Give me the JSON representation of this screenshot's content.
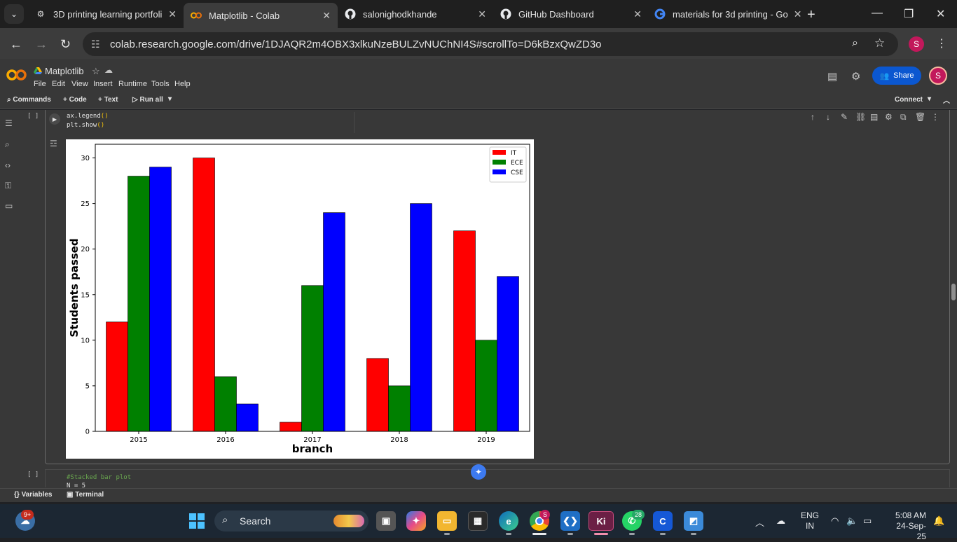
{
  "browser": {
    "tabs": [
      {
        "title": "3D printing learning portfoli",
        "icon": "settings-icon"
      },
      {
        "title": "Matplotlib - Colab",
        "icon": "colab-icon",
        "active": true
      },
      {
        "title": "salonighodkhande",
        "icon": "github-icon"
      },
      {
        "title": "GitHub Dashboard",
        "icon": "github-icon"
      },
      {
        "title": "materials for 3d printing - Go",
        "icon": "google-icon"
      }
    ],
    "url": "colab.research.google.com/drive/1DJAQR2m4OBX3xlkuNzeBULZvNUChNI4S#scrollTo=D6kBzxQwZD3o",
    "profile_initial": "S"
  },
  "colab": {
    "notebook_title": "Matplotlib",
    "menu": [
      "File",
      "Edit",
      "View",
      "Insert",
      "Runtime",
      "Tools",
      "Help"
    ],
    "share_label": "Share",
    "avatar_initial": "S",
    "commands_label": "Commands",
    "code_label": "Code",
    "text_label": "Text",
    "run_all_label": "Run all",
    "connect_label": "Connect",
    "cell1": {
      "bracket": "[ ]",
      "code_lines": [
        "ax.legend",
        "plt.show"
      ],
      "paren": "()"
    },
    "cell2": {
      "bracket": "[ ]",
      "comment": "#Stacked bar plot",
      "partial_line": "N = 5"
    },
    "variables_label": "Variables",
    "terminal_label": "Terminal"
  },
  "chart_data": {
    "type": "bar",
    "categories": [
      "2015",
      "2016",
      "2017",
      "2018",
      "2019"
    ],
    "series": [
      {
        "name": "IT",
        "color": "#ff0000",
        "values": [
          12,
          30,
          1,
          8,
          22
        ]
      },
      {
        "name": "ECE",
        "color": "#008000",
        "values": [
          28,
          6,
          16,
          5,
          10
        ]
      },
      {
        "name": "CSE",
        "color": "#0000ff",
        "values": [
          29,
          3,
          24,
          25,
          17
        ]
      }
    ],
    "title": "",
    "xlabel": "branch",
    "ylabel": "Students passed",
    "ylim": [
      0,
      31.5
    ],
    "yticks": [
      0,
      5,
      10,
      15,
      20,
      25,
      30
    ],
    "legend_position": "top-right",
    "grid": false
  },
  "taskbar": {
    "search_label": "Search",
    "notification_count": "9+",
    "chrome_badge": "S",
    "whatsapp_badge": "28",
    "lang_line1": "ENG",
    "lang_line2": "IN",
    "time": "5:08 AM",
    "date": "24-Sep-25"
  }
}
